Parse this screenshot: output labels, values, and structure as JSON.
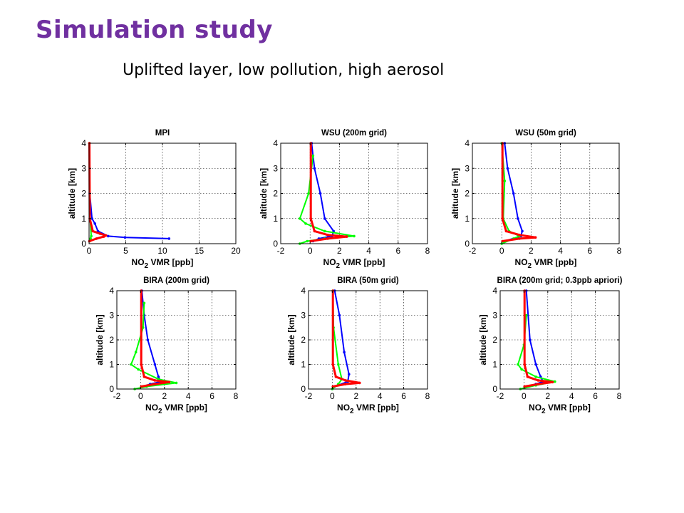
{
  "slide": {
    "title": "Simulation study",
    "subtitle": "Uplifted layer, low pollution, high aerosol"
  },
  "colors": {
    "title": "#7030A0",
    "blue": "#0000FF",
    "green": "#00FF00",
    "red": "#FF0000"
  },
  "chart_data": [
    {
      "type": "line",
      "title": "MPI",
      "xlabel": "NO2 VMR [ppb]",
      "ylabel": "altitude [km]",
      "xlim": [
        0,
        20
      ],
      "ylim": [
        0,
        4
      ],
      "xticks": [
        "0",
        "5",
        "10",
        "15",
        "20"
      ],
      "yticks": [
        "0",
        "1",
        "2",
        "3",
        "4"
      ],
      "grid": true,
      "series": [
        {
          "color": "#0000FF",
          "x": [
            10.9,
            4.9,
            2.6,
            1.2,
            0.8,
            0.4,
            0.1,
            0.05
          ],
          "y": [
            0.2,
            0.25,
            0.3,
            0.5,
            0.8,
            1.0,
            2.0,
            4.0
          ]
        },
        {
          "color": "#00FF00",
          "x": [
            0.1,
            0.2,
            0.3,
            0.15,
            0.05
          ],
          "y": [
            0.1,
            0.2,
            0.3,
            1.0,
            4.0
          ]
        },
        {
          "color": "#FF0000",
          "x": [
            0.05,
            1.0,
            2.0,
            2.3,
            1.5,
            0.5,
            0.1,
            0.05
          ],
          "y": [
            0.1,
            0.2,
            0.28,
            0.33,
            0.4,
            0.5,
            1.0,
            4.0
          ]
        }
      ]
    },
    {
      "type": "line",
      "title": "WSU (200m grid)",
      "xlabel": "NO2 VMR [ppb]",
      "ylabel": "altitude [km]",
      "xlim": [
        -2,
        8
      ],
      "ylim": [
        0,
        4
      ],
      "xticks": [
        "-2",
        "0",
        "2",
        "4",
        "6",
        "8"
      ],
      "yticks": [
        "0",
        "1",
        "2",
        "3",
        "4"
      ],
      "grid": true,
      "series": [
        {
          "color": "#0000FF",
          "x": [
            0.2,
            0.6,
            1.5,
            1.6,
            1.0,
            0.7,
            0.3,
            0.1
          ],
          "y": [
            0.1,
            0.2,
            0.3,
            0.5,
            1.0,
            2.0,
            3.0,
            4.0
          ]
        },
        {
          "color": "#00FF00",
          "x": [
            -0.7,
            -0.2,
            1.0,
            3.0,
            1.0,
            -0.3,
            -0.7,
            -0.1,
            0.2
          ],
          "y": [
            0.0,
            0.1,
            0.2,
            0.3,
            0.5,
            0.8,
            1.0,
            2.0,
            3.5
          ]
        },
        {
          "color": "#FF0000",
          "x": [
            0.05,
            1.2,
            2.5,
            1.2,
            0.3,
            0.05,
            0.05
          ],
          "y": [
            0.1,
            0.2,
            0.28,
            0.35,
            0.5,
            1.0,
            4.0
          ]
        }
      ]
    },
    {
      "type": "line",
      "title": "WSU (50m grid)",
      "xlabel": "NO2 VMR [ppb]",
      "ylabel": "altitude [km]",
      "xlim": [
        -2,
        8
      ],
      "ylim": [
        0,
        4
      ],
      "xticks": [
        "-2",
        "0",
        "2",
        "4",
        "6",
        "8"
      ],
      "yticks": [
        "0",
        "1",
        "2",
        "3",
        "4"
      ],
      "grid": true,
      "series": [
        {
          "color": "#0000FF",
          "x": [
            0.2,
            1.3,
            1.4,
            1.1,
            0.8,
            0.4,
            0.2
          ],
          "y": [
            0.1,
            0.3,
            0.5,
            1.0,
            2.0,
            3.0,
            4.0
          ]
        },
        {
          "color": "#00FF00",
          "x": [
            0.0,
            0.8,
            1.2,
            0.5,
            0.1,
            0.2,
            0.0
          ],
          "y": [
            0.0,
            0.2,
            0.3,
            0.5,
            1.0,
            2.5,
            4.0
          ]
        },
        {
          "color": "#FF0000",
          "x": [
            0.05,
            1.2,
            2.3,
            1.2,
            0.3,
            0.05,
            0.05
          ],
          "y": [
            0.1,
            0.2,
            0.25,
            0.35,
            0.5,
            1.0,
            4.0
          ]
        }
      ]
    },
    {
      "type": "line",
      "title": "BIRA (200m grid)",
      "xlabel": "NO2 VMR [ppb]",
      "ylabel": "altitude [km]",
      "xlim": [
        -2,
        8
      ],
      "ylim": [
        0,
        4
      ],
      "xticks": [
        "-2",
        "0",
        "2",
        "4",
        "6",
        "8"
      ],
      "yticks": [
        "0",
        "1",
        "2",
        "3",
        "4"
      ],
      "grid": true,
      "series": [
        {
          "color": "#0000FF",
          "x": [
            0.2,
            0.8,
            1.7,
            1.5,
            1.2,
            0.6,
            0.3,
            0.1
          ],
          "y": [
            0.1,
            0.2,
            0.3,
            0.5,
            1.0,
            2.0,
            3.0,
            4.0
          ]
        },
        {
          "color": "#00FF00",
          "x": [
            -0.5,
            0.5,
            3.0,
            1.5,
            -0.2,
            -0.8,
            -0.4,
            0.2,
            0.3
          ],
          "y": [
            0.0,
            0.1,
            0.25,
            0.4,
            0.8,
            1.0,
            1.5,
            2.5,
            3.5
          ]
        },
        {
          "color": "#FF0000",
          "x": [
            0.05,
            1.2,
            2.4,
            1.2,
            0.3,
            0.05,
            0.05
          ],
          "y": [
            0.1,
            0.2,
            0.28,
            0.35,
            0.5,
            1.0,
            4.0
          ]
        }
      ]
    },
    {
      "type": "line",
      "title": "BIRA (50m grid)",
      "xlabel": "NO2 VMR [ppb]",
      "ylabel": "altitude [km]",
      "xlim": [
        -2,
        8
      ],
      "ylim": [
        0,
        4
      ],
      "xticks": [
        "-2",
        "0",
        "2",
        "4",
        "6",
        "8"
      ],
      "yticks": [
        "0",
        "1",
        "2",
        "3",
        "4"
      ],
      "grid": true,
      "series": [
        {
          "color": "#0000FF",
          "x": [
            0.2,
            1.3,
            1.4,
            1.0,
            0.6,
            0.2
          ],
          "y": [
            0.1,
            0.3,
            0.6,
            1.5,
            3.0,
            4.0
          ]
        },
        {
          "color": "#00FF00",
          "x": [
            0.0,
            0.5,
            0.8,
            0.5,
            0.1,
            0.05
          ],
          "y": [
            0.0,
            0.2,
            0.4,
            1.0,
            2.5,
            4.0
          ]
        },
        {
          "color": "#FF0000",
          "x": [
            0.05,
            1.1,
            2.3,
            1.1,
            0.3,
            0.05,
            0.05
          ],
          "y": [
            0.1,
            0.2,
            0.25,
            0.35,
            0.5,
            1.0,
            4.0
          ]
        }
      ]
    },
    {
      "type": "line",
      "title": "BIRA (200m grid; 0.3ppb apriori)",
      "xlabel": "NO2 VMR [ppb]",
      "ylabel": "altitude [km]",
      "xlim": [
        -2,
        8
      ],
      "ylim": [
        0,
        4
      ],
      "xticks": [
        "-2",
        "0",
        "2",
        "4",
        "6",
        "8"
      ],
      "yticks": [
        "0",
        "1",
        "2",
        "3",
        "4"
      ],
      "grid": true,
      "series": [
        {
          "color": "#0000FF",
          "x": [
            0.2,
            1.0,
            1.6,
            1.4,
            1.0,
            0.5,
            0.2
          ],
          "y": [
            0.1,
            0.2,
            0.3,
            0.5,
            1.0,
            2.0,
            4.0
          ]
        },
        {
          "color": "#00FF00",
          "x": [
            -0.3,
            1.0,
            2.6,
            1.0,
            -0.2,
            -0.5,
            0.0,
            0.2
          ],
          "y": [
            0.0,
            0.15,
            0.3,
            0.5,
            0.8,
            1.0,
            1.8,
            3.0
          ]
        },
        {
          "color": "#FF0000",
          "x": [
            0.05,
            1.2,
            2.4,
            1.2,
            0.3,
            0.05,
            0.05
          ],
          "y": [
            0.1,
            0.2,
            0.28,
            0.35,
            0.5,
            1.0,
            4.0
          ]
        }
      ]
    }
  ]
}
